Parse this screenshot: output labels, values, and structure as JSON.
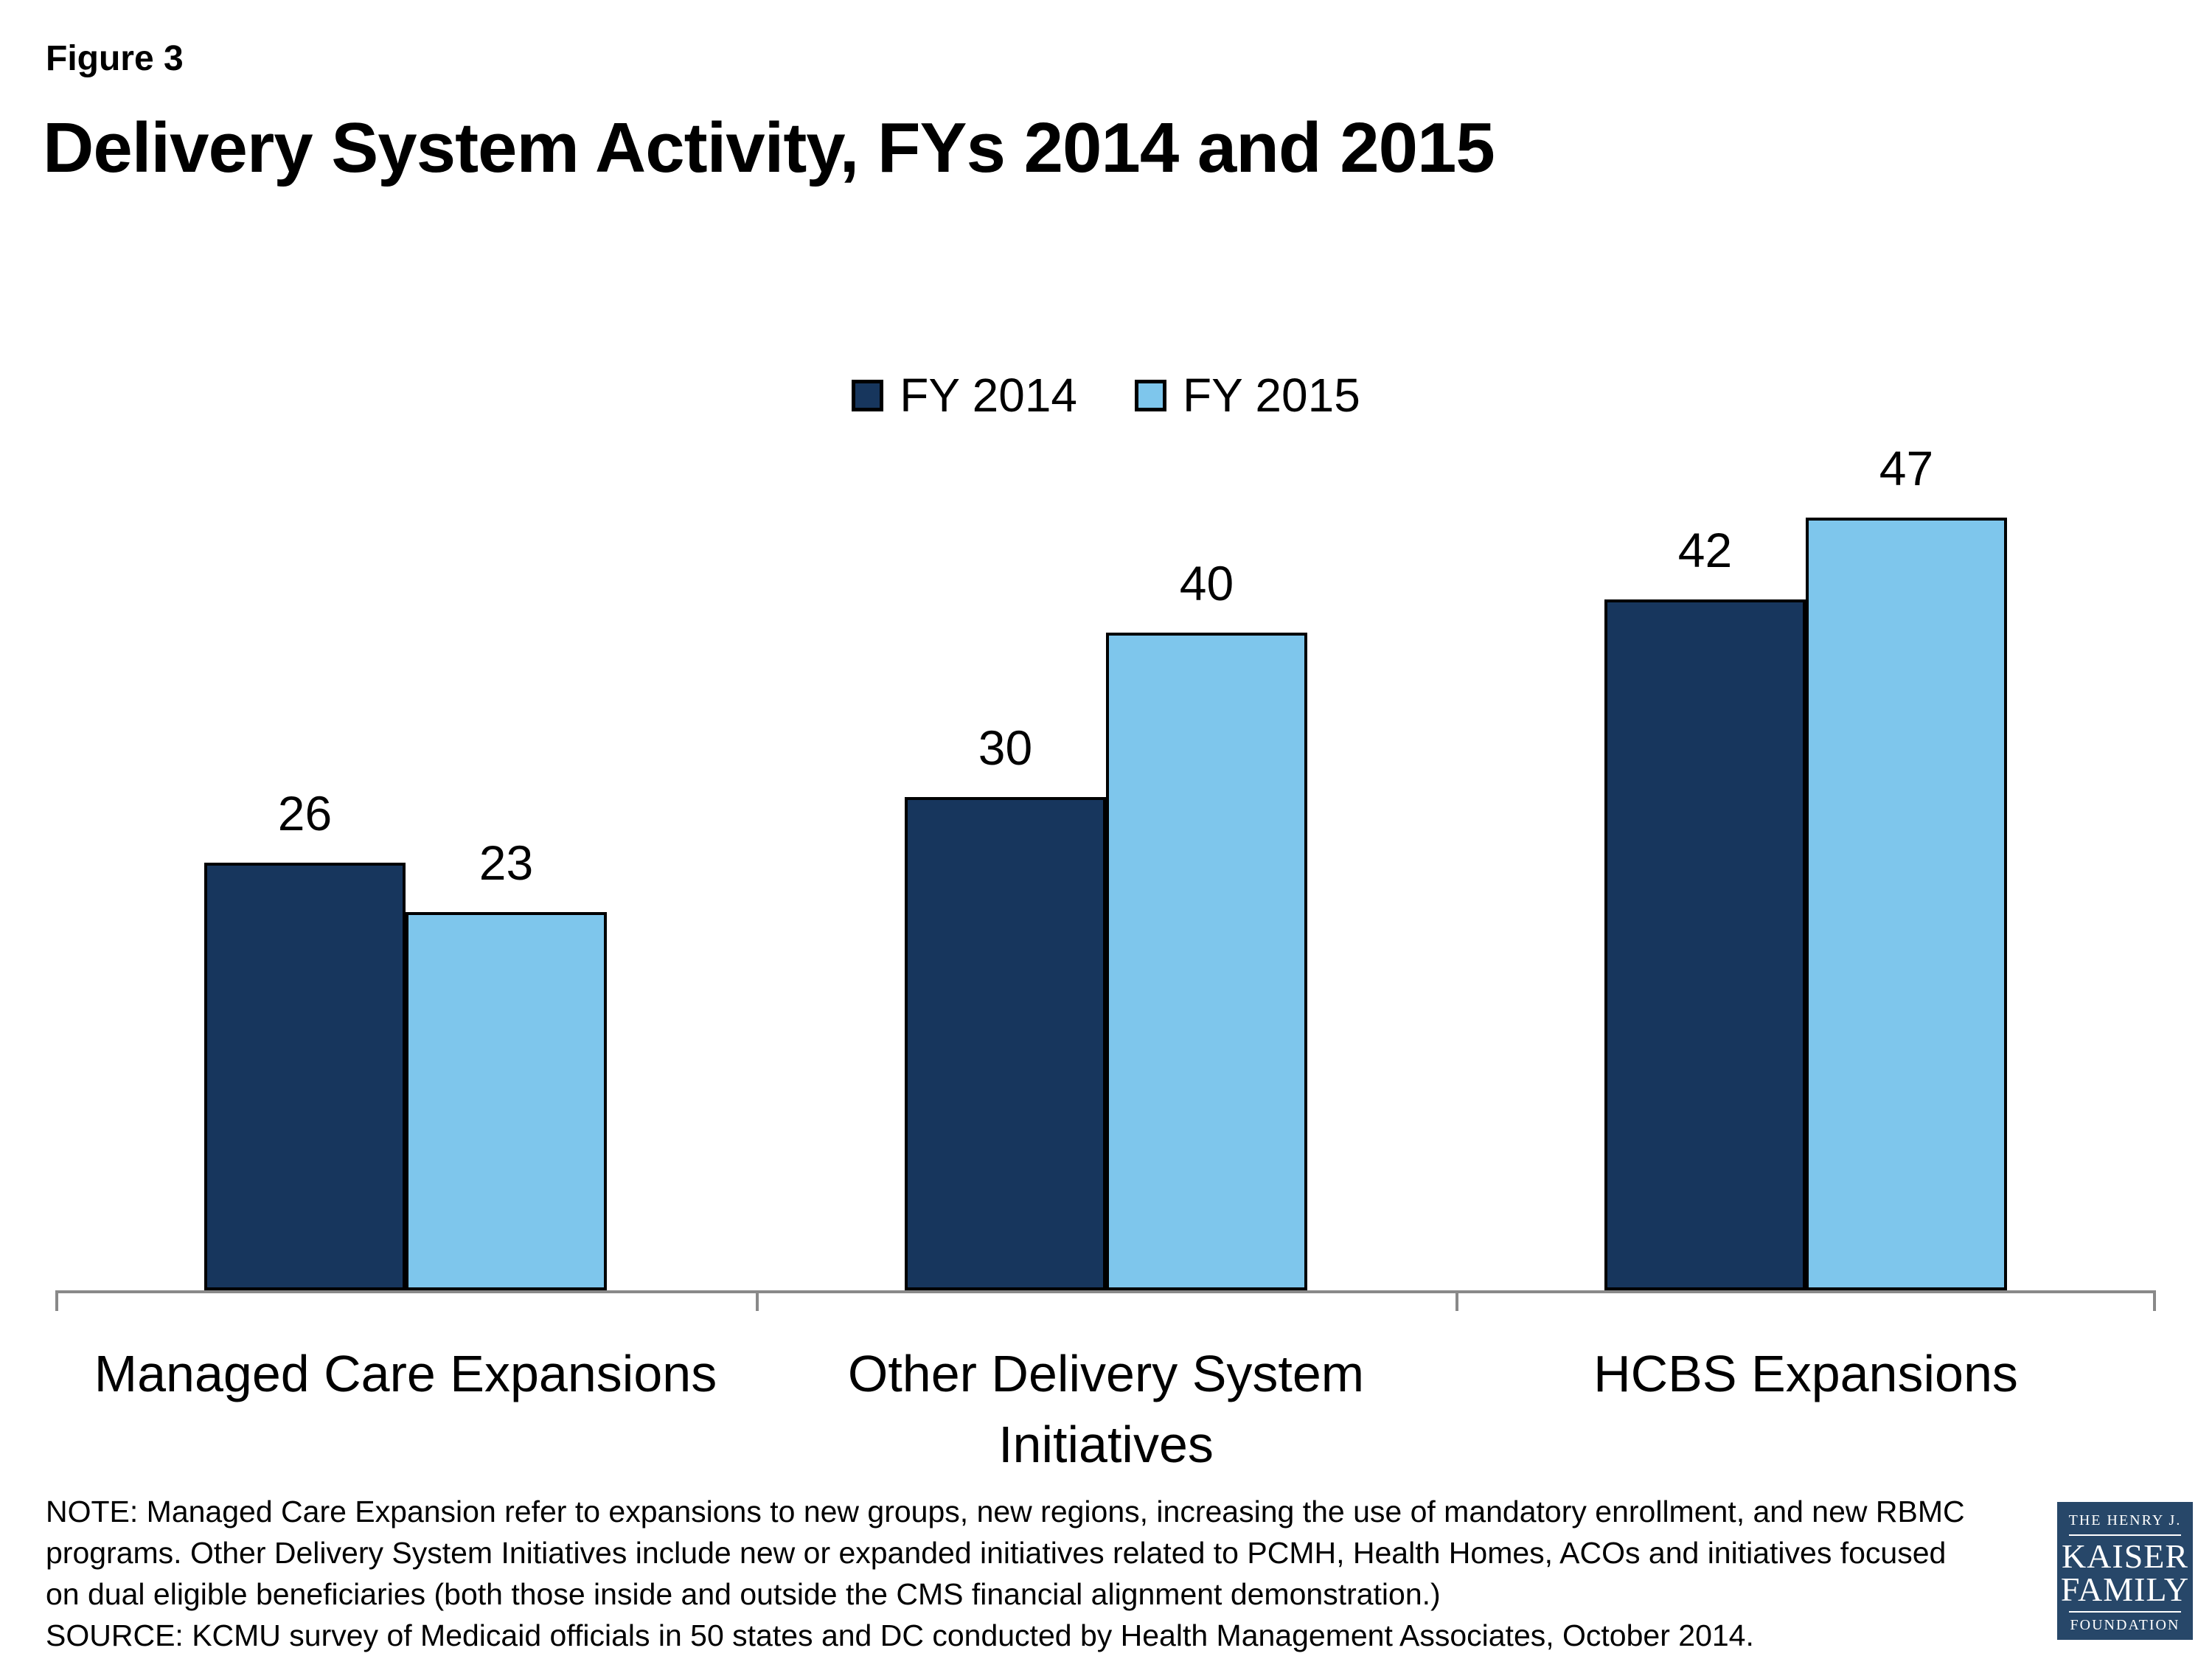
{
  "figure_label": "Figure 3",
  "title": "Delivery System Activity, FYs 2014 and 2015",
  "chart_data": {
    "type": "bar",
    "categories": [
      "Managed Care Expansions",
      "Other Delivery System Initiatives",
      "HCBS Expansions"
    ],
    "series": [
      {
        "name": "FY 2014",
        "color": "#17365D",
        "values": [
          26,
          30,
          42
        ]
      },
      {
        "name": "FY 2015",
        "color": "#7EC6EC",
        "values": [
          23,
          40,
          47
        ]
      }
    ],
    "ylim": [
      0,
      50
    ],
    "grid": false,
    "data_labels": true,
    "legend_position": "top-center",
    "axis_color": "#898989",
    "bar_border_color": "#000000"
  },
  "note_lines": [
    "NOTE: Managed Care Expansion refer to expansions to new groups, new regions, increasing the use of mandatory enrollment, and new RBMC",
    "programs. Other Delivery System Initiatives include new or expanded initiatives related to PCMH, Health Homes, ACOs and initiatives focused",
    "on dual eligible beneficiaries (both those inside and outside the CMS financial alignment demonstration.)",
    "SOURCE: KCMU survey of Medicaid officials in 50 states and DC conducted by Health Management Associates, October 2014."
  ],
  "logo": {
    "line1": "THE HENRY J.",
    "line2": "KAISER",
    "line3": "FAMILY",
    "line4": "FOUNDATION",
    "background": "#274769"
  }
}
